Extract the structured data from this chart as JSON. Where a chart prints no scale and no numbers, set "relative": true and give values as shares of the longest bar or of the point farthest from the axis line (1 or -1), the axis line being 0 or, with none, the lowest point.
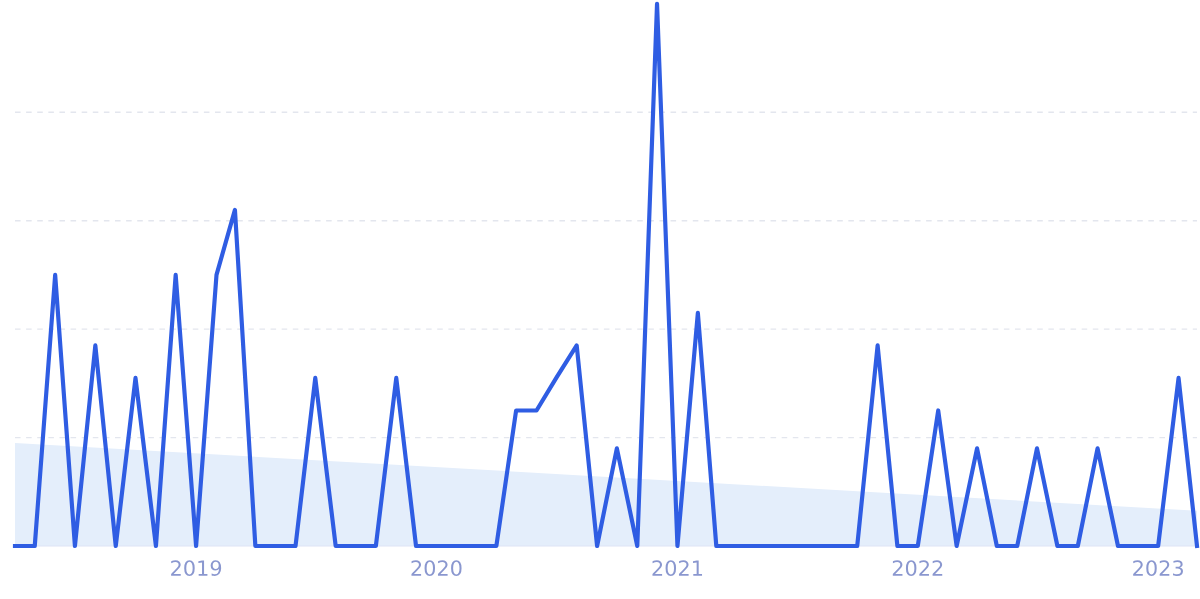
{
  "chart_data": {
    "type": "line",
    "relative": true,
    "grid": "y",
    "xlim": [
      "2018-04",
      "2023-03"
    ],
    "xticks": [
      "2019",
      "2020",
      "2021",
      "2022",
      "2023"
    ],
    "series": [
      {
        "type": "area",
        "color": "#e4eefb",
        "x": [
          "2018-04",
          "2023-03"
        ],
        "values": [
          0.19,
          0.065
        ]
      },
      {
        "color": "#2f5de3",
        "x": [
          "2018-04",
          "2018-05",
          "2018-06",
          "2018-07",
          "2018-08",
          "2018-09",
          "2018-10",
          "2018-11",
          "2018-12",
          "2019-01",
          "2019-02",
          "2019-03",
          "2019-04",
          "2019-05",
          "2019-06",
          "2019-07",
          "2019-08",
          "2019-09",
          "2019-10",
          "2019-11",
          "2019-12",
          "2020-01",
          "2020-02",
          "2020-03",
          "2020-04",
          "2020-05",
          "2020-06",
          "2020-07",
          "2020-08",
          "2020-09",
          "2020-10",
          "2020-11",
          "2020-12",
          "2021-01",
          "2021-02",
          "2021-03",
          "2021-04",
          "2021-05",
          "2021-06",
          "2021-07",
          "2021-08",
          "2021-09",
          "2021-10",
          "2021-11",
          "2021-12",
          "2022-01",
          "2022-02",
          "2022-03",
          "2022-04",
          "2022-05",
          "2022-06",
          "2022-07",
          "2022-08",
          "2022-09",
          "2022-10",
          "2022-11",
          "2022-12",
          "2023-01",
          "2023-02",
          "2023-03"
        ],
        "values": [
          0,
          0,
          0.5,
          0,
          0.37,
          0,
          0.31,
          0,
          0.5,
          0,
          0.5,
          0.62,
          0,
          0,
          0,
          0.31,
          0,
          0,
          0,
          0.31,
          0,
          0,
          0,
          0,
          0,
          0.25,
          0.25,
          0.31,
          0.37,
          0,
          0.18,
          0,
          1,
          0,
          0.43,
          0,
          0,
          0,
          0,
          0,
          0,
          0,
          0,
          0.37,
          0,
          0,
          0.25,
          0,
          0.18,
          0,
          0,
          0.18,
          0,
          0,
          0.18,
          0,
          0,
          0,
          0.31,
          0
        ]
      }
    ]
  }
}
